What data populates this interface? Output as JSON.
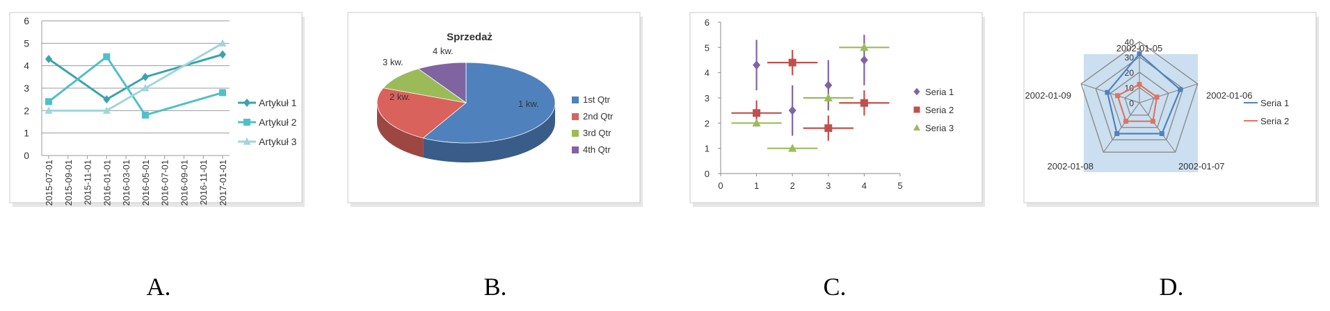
{
  "captions": [
    "A.",
    "B.",
    "C.",
    "D."
  ],
  "chart_data": [
    {
      "type": "line",
      "categories": [
        "2015-07-01",
        "2015-09-01",
        "2015-11-01",
        "2016-01-01",
        "2016-03-01",
        "2016-05-01",
        "2016-07-01",
        "2016-09-01",
        "2016-11-01",
        "2017-01-01"
      ],
      "ylim": [
        0,
        6
      ],
      "yticks": [
        "0",
        "1",
        "2",
        "3",
        "4",
        "5",
        "6"
      ],
      "series": [
        {
          "name": "Artykuł 1",
          "color": "#3aa3ae",
          "marker": "diamond",
          "points": [
            [
              "2015-07-01",
              4.3
            ],
            [
              "2016-01-01",
              2.5
            ],
            [
              "2016-05-01",
              3.5
            ],
            [
              "2017-01-01",
              4.5
            ]
          ]
        },
        {
          "name": "Artykuł 2",
          "color": "#4fc0c9",
          "marker": "square",
          "points": [
            [
              "2015-07-01",
              2.4
            ],
            [
              "2016-01-01",
              4.4
            ],
            [
              "2016-05-01",
              1.8
            ],
            [
              "2017-01-01",
              2.8
            ]
          ]
        },
        {
          "name": "Artykuł 3",
          "color": "#9fd6dc",
          "marker": "triangle",
          "points": [
            [
              "2015-07-01",
              2.0
            ],
            [
              "2016-01-01",
              2.0
            ],
            [
              "2016-05-01",
              3.0
            ],
            [
              "2017-01-01",
              5.0
            ]
          ]
        }
      ],
      "legend": "right",
      "grid": true
    },
    {
      "type": "pie",
      "title": "Sprzedaż",
      "slices": [
        {
          "label": "1 kw.",
          "legend": "1st Qtr",
          "value": 58,
          "color": "#4f81bd"
        },
        {
          "label": "2 kw.",
          "legend": "2nd Qtr",
          "value": 23,
          "color": "#d9625c"
        },
        {
          "label": "3 kw.",
          "legend": "3rd Qtr",
          "value": 10,
          "color": "#9bbb59"
        },
        {
          "label": "4 kw.",
          "legend": "4th Qtr",
          "value": 9,
          "color": "#8064a2"
        }
      ],
      "legend": "right",
      "style": "3d"
    },
    {
      "type": "scatter",
      "xlim": [
        0,
        5
      ],
      "ylim": [
        0,
        6
      ],
      "xticks": [
        "0",
        "1",
        "2",
        "3",
        "4",
        "5"
      ],
      "yticks": [
        "0",
        "1",
        "2",
        "3",
        "4",
        "5",
        "6"
      ],
      "series": [
        {
          "name": "Seria 1",
          "color": "#8064a2",
          "marker": "diamond",
          "points": [
            {
              "x": 1,
              "y": 4.3,
              "yerr": 1.0
            },
            {
              "x": 2,
              "y": 2.5,
              "yerr": 1.0
            },
            {
              "x": 3,
              "y": 3.5,
              "yerr": 1.0
            },
            {
              "x": 4,
              "y": 4.5,
              "yerr": 1.0
            }
          ]
        },
        {
          "name": "Seria 2",
          "color": "#c0504d",
          "marker": "square",
          "points": [
            {
              "x": 1,
              "y": 2.4,
              "xerr": 0.7,
              "yerr": 0.5
            },
            {
              "x": 2,
              "y": 4.4,
              "xerr": 0.7,
              "yerr": 0.5
            },
            {
              "x": 3,
              "y": 1.8,
              "xerr": 0.7,
              "yerr": 0.5
            },
            {
              "x": 4,
              "y": 2.8,
              "xerr": 0.7,
              "yerr": 0.5
            }
          ]
        },
        {
          "name": "Seria 3",
          "color": "#9bbb59",
          "marker": "triangle",
          "points": [
            {
              "x": 1,
              "y": 2.0,
              "xerr": 0.7
            },
            {
              "x": 2,
              "y": 1.0,
              "xerr": 0.7
            },
            {
              "x": 3,
              "y": 3.0,
              "xerr": 0.7
            },
            {
              "x": 4,
              "y": 5.0,
              "xerr": 0.7
            }
          ]
        }
      ],
      "legend": "right",
      "grid": false
    },
    {
      "type": "radar",
      "categories": [
        "2002-01-05",
        "2002-01-06",
        "2002-01-07",
        "2002-01-08",
        "2002-01-09"
      ],
      "rlim": [
        0,
        40
      ],
      "rticks": [
        "0",
        "10",
        "20",
        "30",
        "40"
      ],
      "series": [
        {
          "name": "Seria 1",
          "color": "#4f81bd",
          "values": [
            32,
            28,
            25,
            25,
            22
          ]
        },
        {
          "name": "Seria 2",
          "color": "#e0735f",
          "values": [
            12,
            12,
            15,
            15,
            15
          ]
        }
      ],
      "legend": "right"
    }
  ]
}
